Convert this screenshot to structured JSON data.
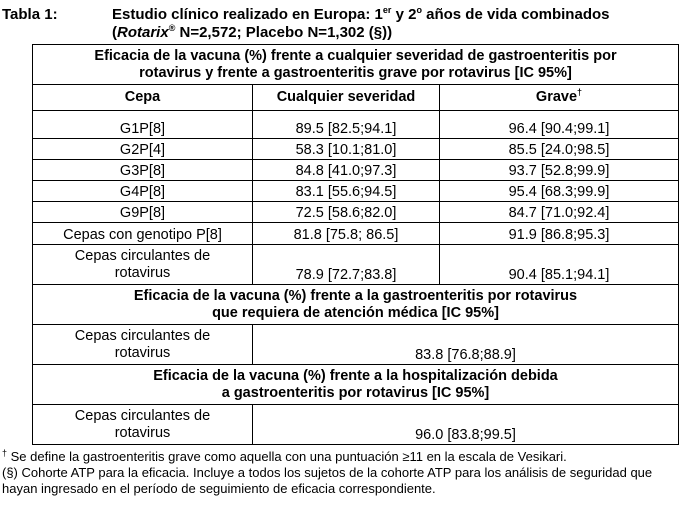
{
  "caption": {
    "label": "Tabla 1:",
    "title_line1_pre": "Estudio clínico realizado en Europa: 1",
    "sup1": "er",
    "title_line1_mid": " y 2",
    "sup2": "o",
    "title_line1_post": " años de vida combinados",
    "brand": "Rotarix",
    "brand_mark": "®",
    "title_line2_post": " N=2,572; Placebo N=1,302 (§))",
    "open_paren": "("
  },
  "section1": {
    "line1": "Eficacia de la vacuna (%) frente a cualquier severidad de gastroenteritis por",
    "line2": "rotavirus y frente a gastroenteritis grave por rotavirus  [IC 95%]"
  },
  "headers": {
    "col1": "Cepa",
    "col2": "Cualquier severidad",
    "col3": "Grave",
    "col3_mark": "†"
  },
  "rows": [
    {
      "cepa": "G1P[8]",
      "any": "89.5 [82.5;94.1]",
      "severe": "96.4 [90.4;99.1]"
    },
    {
      "cepa": "G2P[4]",
      "any": "58.3 [10.1;81.0]",
      "severe": "85.5 [24.0;98.5]"
    },
    {
      "cepa": "G3P[8]",
      "any": "84.8 [41.0;97.3]",
      "severe": "93.7 [52.8;99.9]"
    },
    {
      "cepa": "G4P[8]",
      "any": "83.1 [55.6;94.5]",
      "severe": "95.4 [68.3;99.9]"
    },
    {
      "cepa": "G9P[8]",
      "any": "72.5 [58.6;82.0]",
      "severe": "84.7 [71.0;92.4]"
    },
    {
      "cepa": "Cepas con genotipo P[8]",
      "any": "81.8 [75.8; 86.5]",
      "severe": "91.9 [86.8;95.3]"
    }
  ],
  "circulating": {
    "line1": "Cepas circulantes de",
    "line2": "rotavirus",
    "any": "78.9 [72.7;83.8]",
    "severe": "90.4 [85.1;94.1]"
  },
  "section2": {
    "line1": "Eficacia de la vacuna (%) frente a la gastroenteritis por rotavirus",
    "line2": "que requiera de atención médica  [IC 95%]",
    "cepa_line1": "Cepas circulantes de",
    "cepa_line2": "rotavirus",
    "value": "83.8  [76.8;88.9]"
  },
  "section3": {
    "line1": "Eficacia de la vacuna (%) frente a la hospitalización debida",
    "line2": "a gastroenteritis por rotavirus  [IC 95%]",
    "cepa_line1": "Cepas circulantes de",
    "cepa_line2": "rotavirus",
    "value": "96.0  [83.8;99.5]"
  },
  "notes": {
    "dagger": "†",
    "note1": " Se define la gastroenteritis grave como aquella con una puntuación ≥11 en la escala de Vesikari.",
    "note2": "(§) Cohorte ATP para la eficacia. Incluye a todos los sujetos de la cohorte ATP para los análisis de seguridad que hayan ingresado en el período de seguimiento de eficacia correspondiente."
  }
}
